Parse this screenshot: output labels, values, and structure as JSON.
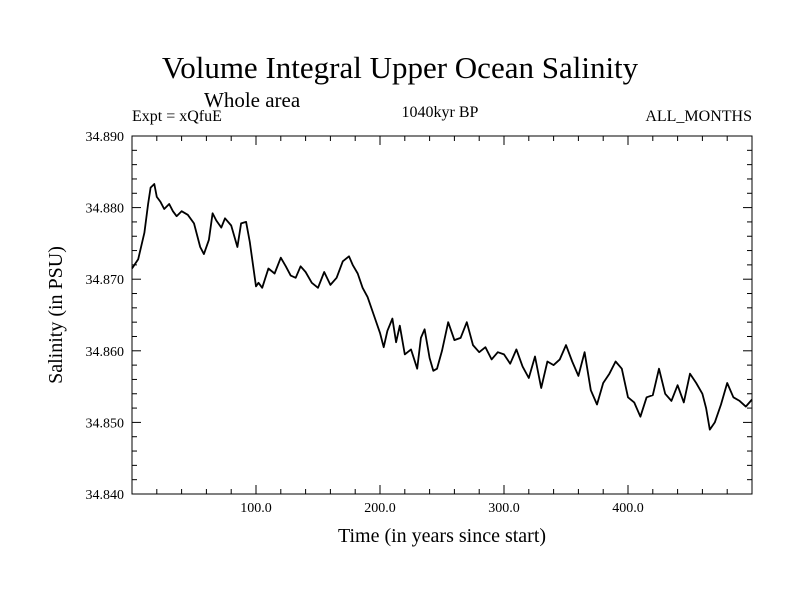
{
  "chart_data": {
    "type": "line",
    "title": "Volume Integral Upper Ocean Salinity",
    "subtitle": "Whole area",
    "annotation_left": "Expt = xQfuE",
    "annotation_center": "1040kyr BP",
    "annotation_right": "ALL_MONTHS",
    "xlabel": "Time (in years since start)",
    "ylabel": "Salinity (in PSU)",
    "xlim": [
      0,
      500
    ],
    "ylim": [
      34.84,
      34.89
    ],
    "xticks": [
      100,
      200,
      300,
      400
    ],
    "xtick_labels": [
      "100.0",
      "200.0",
      "300.0",
      "400.0"
    ],
    "yticks": [
      34.84,
      34.85,
      34.86,
      34.87,
      34.88,
      34.89
    ],
    "ytick_labels": [
      "34.840",
      "34.850",
      "34.860",
      "34.870",
      "34.880",
      "34.890"
    ],
    "series": [
      {
        "name": "salinity",
        "x": [
          0,
          5,
          10,
          13,
          15,
          18,
          20,
          23,
          26,
          30,
          33,
          36,
          40,
          45,
          50,
          55,
          58,
          62,
          65,
          68,
          72,
          75,
          80,
          85,
          88,
          92,
          95,
          98,
          100,
          102,
          105,
          110,
          115,
          120,
          124,
          128,
          132,
          136,
          140,
          145,
          150,
          155,
          160,
          165,
          170,
          175,
          178,
          182,
          186,
          190,
          195,
          200,
          203,
          206,
          210,
          213,
          216,
          220,
          225,
          230,
          233,
          236,
          240,
          243,
          246,
          250,
          255,
          260,
          265,
          270,
          275,
          280,
          285,
          290,
          295,
          300,
          305,
          310,
          315,
          320,
          325,
          330,
          335,
          340,
          345,
          350,
          355,
          360,
          365,
          370,
          375,
          380,
          385,
          390,
          395,
          400,
          405,
          410,
          415,
          420,
          425,
          430,
          435,
          440,
          445,
          450,
          455,
          460,
          463,
          466,
          470,
          475,
          480,
          485,
          490,
          495,
          500
        ],
        "y": [
          34.8715,
          34.8728,
          34.8765,
          34.8805,
          34.8828,
          34.8833,
          34.8815,
          34.8808,
          34.8798,
          34.8805,
          34.8795,
          34.8788,
          34.8795,
          34.879,
          34.8778,
          34.8745,
          34.8735,
          34.8755,
          34.8792,
          34.8782,
          34.8772,
          34.8785,
          34.8775,
          34.8745,
          34.8778,
          34.878,
          34.8752,
          34.8715,
          34.869,
          34.8695,
          34.8688,
          34.8715,
          34.8708,
          34.873,
          34.8718,
          34.8705,
          34.8702,
          34.8718,
          34.871,
          34.8695,
          34.8688,
          34.871,
          34.8692,
          34.8702,
          34.8725,
          34.8732,
          34.872,
          34.8708,
          34.8688,
          34.8675,
          34.865,
          34.8625,
          34.8605,
          34.8628,
          34.8645,
          34.8612,
          34.8635,
          34.8595,
          34.8602,
          34.8575,
          34.8618,
          34.863,
          34.859,
          34.8572,
          34.8575,
          34.86,
          34.864,
          34.8615,
          34.8618,
          34.864,
          34.8608,
          34.8598,
          34.8605,
          34.8588,
          34.8598,
          34.8595,
          34.8582,
          34.8602,
          34.8578,
          34.8562,
          34.8592,
          34.8548,
          34.8585,
          34.858,
          34.8588,
          34.8608,
          34.8585,
          34.8565,
          34.8598,
          34.8545,
          34.8525,
          34.8555,
          34.8568,
          34.8585,
          34.8575,
          34.8535,
          34.8528,
          34.8508,
          34.8535,
          34.8538,
          34.8575,
          34.854,
          34.853,
          34.8552,
          34.8528,
          34.8568,
          34.8555,
          34.854,
          34.852,
          34.849,
          34.85,
          34.8525,
          34.8555,
          34.8535,
          34.853,
          34.8522,
          34.8532
        ]
      }
    ]
  },
  "colors": {
    "line": "#000000",
    "axis": "#000000",
    "background": "#ffffff"
  }
}
